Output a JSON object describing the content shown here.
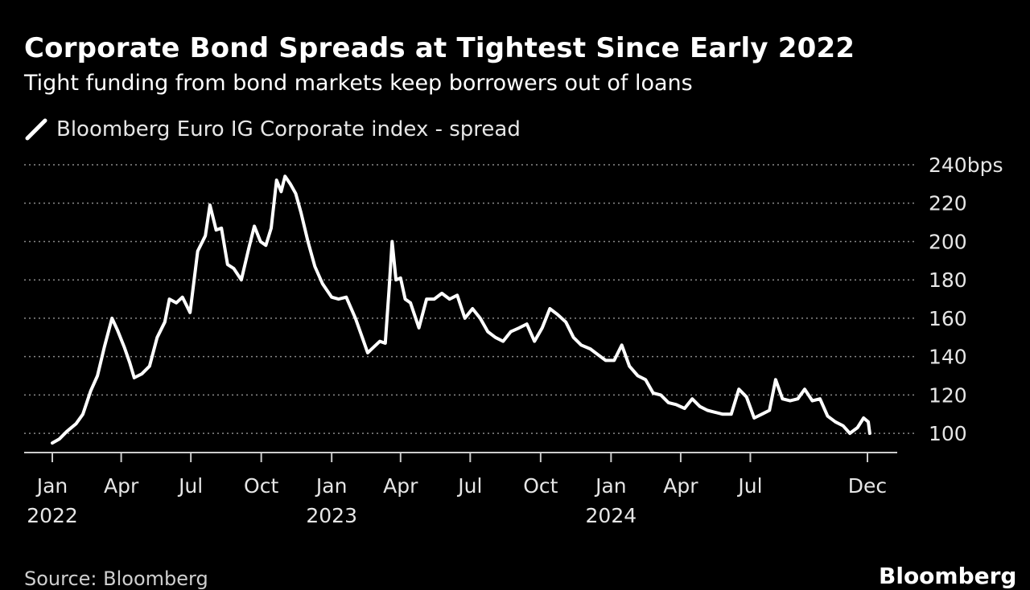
{
  "header": {
    "title": "Corporate Bond Spreads at Tightest Since Early 2022",
    "subtitle": "Tight funding from bond markets keep borrowers out of loans"
  },
  "footer": {
    "source": "Source: Bloomberg",
    "brand": "Bloomberg"
  },
  "colors": {
    "background": "#000000",
    "line": "#ffffff",
    "grid": "#8a8a8a",
    "text": "#e6e6e6"
  },
  "chart_data": {
    "type": "line",
    "title": "Corporate Bond Spreads at Tightest Since Early 2022",
    "subtitle": "Tight funding from bond markets keep borrowers out of loans",
    "legend": "top-left",
    "grid": true,
    "y_axis_position": "right",
    "ylim": [
      90,
      240
    ],
    "y_ticks": [
      {
        "value": 240,
        "label": "240bps"
      },
      {
        "value": 220,
        "label": "220"
      },
      {
        "value": 200,
        "label": "200"
      },
      {
        "value": 180,
        "label": "180"
      },
      {
        "value": 160,
        "label": "160"
      },
      {
        "value": 140,
        "label": "140"
      },
      {
        "value": 120,
        "label": "120"
      },
      {
        "value": 100,
        "label": "100"
      }
    ],
    "xlim": [
      "2022-01-01",
      "2024-12-31"
    ],
    "x_ticks": [
      {
        "date": "2022-01-01",
        "label": "Jan",
        "year": "2022"
      },
      {
        "date": "2022-04-01",
        "label": "Apr",
        "year": ""
      },
      {
        "date": "2022-07-01",
        "label": "Jul",
        "year": ""
      },
      {
        "date": "2022-10-01",
        "label": "Oct",
        "year": ""
      },
      {
        "date": "2023-01-01",
        "label": "Jan",
        "year": "2023"
      },
      {
        "date": "2023-04-01",
        "label": "Apr",
        "year": ""
      },
      {
        "date": "2023-07-01",
        "label": "Jul",
        "year": ""
      },
      {
        "date": "2023-10-01",
        "label": "Oct",
        "year": ""
      },
      {
        "date": "2024-01-01",
        "label": "Jan",
        "year": "2024"
      },
      {
        "date": "2024-04-01",
        "label": "Apr",
        "year": ""
      },
      {
        "date": "2024-07-01",
        "label": "Jul",
        "year": ""
      },
      {
        "date": "2024-12-01",
        "label": "Dec",
        "year": ""
      }
    ],
    "series": [
      {
        "name": "Bloomberg Euro IG Corporate index - spread",
        "points": [
          [
            "2022-01-01",
            95
          ],
          [
            "2022-01-10",
            97
          ],
          [
            "2022-01-20",
            101
          ],
          [
            "2022-02-01",
            105
          ],
          [
            "2022-02-10",
            110
          ],
          [
            "2022-02-20",
            122
          ],
          [
            "2022-03-01",
            130
          ],
          [
            "2022-03-10",
            145
          ],
          [
            "2022-03-20",
            160
          ],
          [
            "2022-03-27",
            154
          ],
          [
            "2022-04-05",
            145
          ],
          [
            "2022-04-12",
            137
          ],
          [
            "2022-04-18",
            129
          ],
          [
            "2022-04-28",
            131
          ],
          [
            "2022-05-08",
            135
          ],
          [
            "2022-05-18",
            150
          ],
          [
            "2022-05-28",
            158
          ],
          [
            "2022-06-03",
            170
          ],
          [
            "2022-06-12",
            168
          ],
          [
            "2022-06-20",
            171
          ],
          [
            "2022-06-30",
            163
          ],
          [
            "2022-07-10",
            195
          ],
          [
            "2022-07-20",
            203
          ],
          [
            "2022-07-26",
            219
          ],
          [
            "2022-08-03",
            206
          ],
          [
            "2022-08-10",
            207
          ],
          [
            "2022-08-18",
            188
          ],
          [
            "2022-08-26",
            186
          ],
          [
            "2022-09-05",
            180
          ],
          [
            "2022-09-15",
            197
          ],
          [
            "2022-09-22",
            208
          ],
          [
            "2022-09-30",
            200
          ],
          [
            "2022-10-07",
            198
          ],
          [
            "2022-10-14",
            207
          ],
          [
            "2022-10-21",
            232
          ],
          [
            "2022-10-27",
            226
          ],
          [
            "2022-11-01",
            234
          ],
          [
            "2022-11-08",
            230
          ],
          [
            "2022-11-15",
            225
          ],
          [
            "2022-11-22",
            215
          ],
          [
            "2022-12-01",
            200
          ],
          [
            "2022-12-10",
            187
          ],
          [
            "2022-12-20",
            178
          ],
          [
            "2023-01-01",
            171
          ],
          [
            "2023-01-10",
            170
          ],
          [
            "2023-01-20",
            171
          ],
          [
            "2023-02-01",
            160
          ],
          [
            "2023-02-10",
            150
          ],
          [
            "2023-02-17",
            142
          ],
          [
            "2023-02-25",
            145
          ],
          [
            "2023-03-05",
            148
          ],
          [
            "2023-03-12",
            147
          ],
          [
            "2023-03-17",
            175
          ],
          [
            "2023-03-21",
            200
          ],
          [
            "2023-03-26",
            180
          ],
          [
            "2023-04-01",
            181
          ],
          [
            "2023-04-07",
            170
          ],
          [
            "2023-04-14",
            168
          ],
          [
            "2023-04-25",
            155
          ],
          [
            "2023-05-05",
            170
          ],
          [
            "2023-05-15",
            170
          ],
          [
            "2023-05-25",
            173
          ],
          [
            "2023-06-04",
            170
          ],
          [
            "2023-06-14",
            172
          ],
          [
            "2023-06-24",
            160
          ],
          [
            "2023-07-04",
            165
          ],
          [
            "2023-07-14",
            160
          ],
          [
            "2023-07-24",
            153
          ],
          [
            "2023-08-03",
            150
          ],
          [
            "2023-08-13",
            148
          ],
          [
            "2023-08-23",
            153
          ],
          [
            "2023-09-03",
            155
          ],
          [
            "2023-09-13",
            157
          ],
          [
            "2023-09-23",
            148
          ],
          [
            "2023-10-03",
            155
          ],
          [
            "2023-10-13",
            165
          ],
          [
            "2023-10-23",
            162
          ],
          [
            "2023-11-03",
            158
          ],
          [
            "2023-11-13",
            150
          ],
          [
            "2023-11-23",
            146
          ],
          [
            "2023-12-05",
            144
          ],
          [
            "2023-12-15",
            141
          ],
          [
            "2023-12-25",
            138
          ],
          [
            "2024-01-05",
            138
          ],
          [
            "2024-01-15",
            146
          ],
          [
            "2024-01-25",
            135
          ],
          [
            "2024-02-05",
            130
          ],
          [
            "2024-02-15",
            128
          ],
          [
            "2024-02-25",
            121
          ],
          [
            "2024-03-06",
            120
          ],
          [
            "2024-03-16",
            116
          ],
          [
            "2024-03-26",
            115
          ],
          [
            "2024-04-06",
            113
          ],
          [
            "2024-04-16",
            118
          ],
          [
            "2024-04-26",
            114
          ],
          [
            "2024-05-06",
            112
          ],
          [
            "2024-05-16",
            111
          ],
          [
            "2024-05-26",
            110
          ],
          [
            "2024-06-06",
            110
          ],
          [
            "2024-06-16",
            123
          ],
          [
            "2024-06-26",
            119
          ],
          [
            "2024-07-06",
            108
          ],
          [
            "2024-07-16",
            110
          ],
          [
            "2024-07-26",
            112
          ],
          [
            "2024-08-03",
            128
          ],
          [
            "2024-08-12",
            118
          ],
          [
            "2024-08-22",
            117
          ],
          [
            "2024-09-01",
            118
          ],
          [
            "2024-09-10",
            123
          ],
          [
            "2024-09-20",
            117
          ],
          [
            "2024-09-30",
            118
          ],
          [
            "2024-10-10",
            109
          ],
          [
            "2024-10-20",
            106
          ],
          [
            "2024-10-30",
            104
          ],
          [
            "2024-11-08",
            100
          ],
          [
            "2024-11-18",
            103
          ],
          [
            "2024-11-26",
            108
          ],
          [
            "2024-12-02",
            106
          ],
          [
            "2024-12-04",
            100
          ]
        ]
      }
    ]
  }
}
